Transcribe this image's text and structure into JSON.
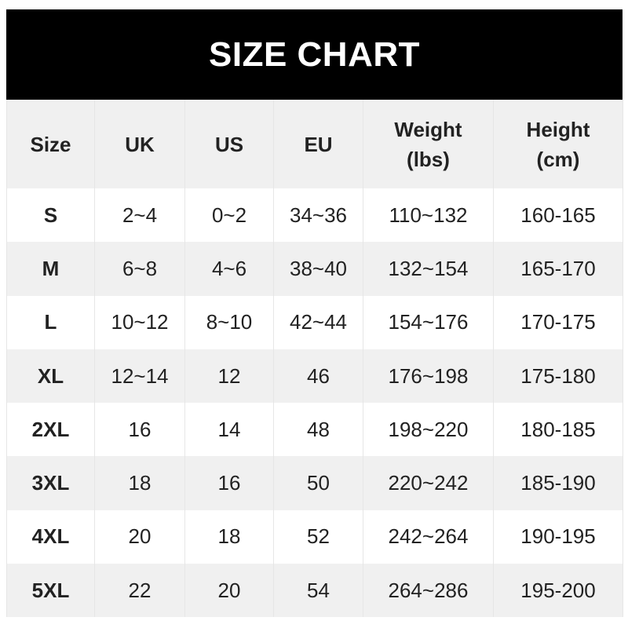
{
  "title": "SIZE CHART",
  "headers": [
    "Size",
    "UK",
    "US",
    "EU",
    "Weight\n(lbs)",
    "Height\n(cm)"
  ],
  "header_lines": [
    [
      "Size"
    ],
    [
      "UK"
    ],
    [
      "US"
    ],
    [
      "EU"
    ],
    [
      "Weight",
      "(lbs)"
    ],
    [
      "Height",
      "(cm)"
    ]
  ],
  "rows": [
    [
      "S",
      "2~4",
      "0~2",
      "34~36",
      "110~132",
      "160-165"
    ],
    [
      "M",
      "6~8",
      "4~6",
      "38~40",
      "132~154",
      "165-170"
    ],
    [
      "L",
      "10~12",
      "8~10",
      "42~44",
      "154~176",
      "170-175"
    ],
    [
      "XL",
      "12~14",
      "12",
      "46",
      "176~198",
      "175-180"
    ],
    [
      "2XL",
      "16",
      "14",
      "48",
      "198~220",
      "180-185"
    ],
    [
      "3XL",
      "18",
      "16",
      "50",
      "220~242",
      "185-190"
    ],
    [
      "4XL",
      "20",
      "18",
      "52",
      "242~264",
      "190-195"
    ],
    [
      "5XL",
      "22",
      "20",
      "54",
      "264~286",
      "195-200"
    ]
  ],
  "colors": {
    "title_bg": "#000000",
    "title_text": "#ffffff",
    "stripe": "#f0f0f0",
    "text": "#222222"
  }
}
